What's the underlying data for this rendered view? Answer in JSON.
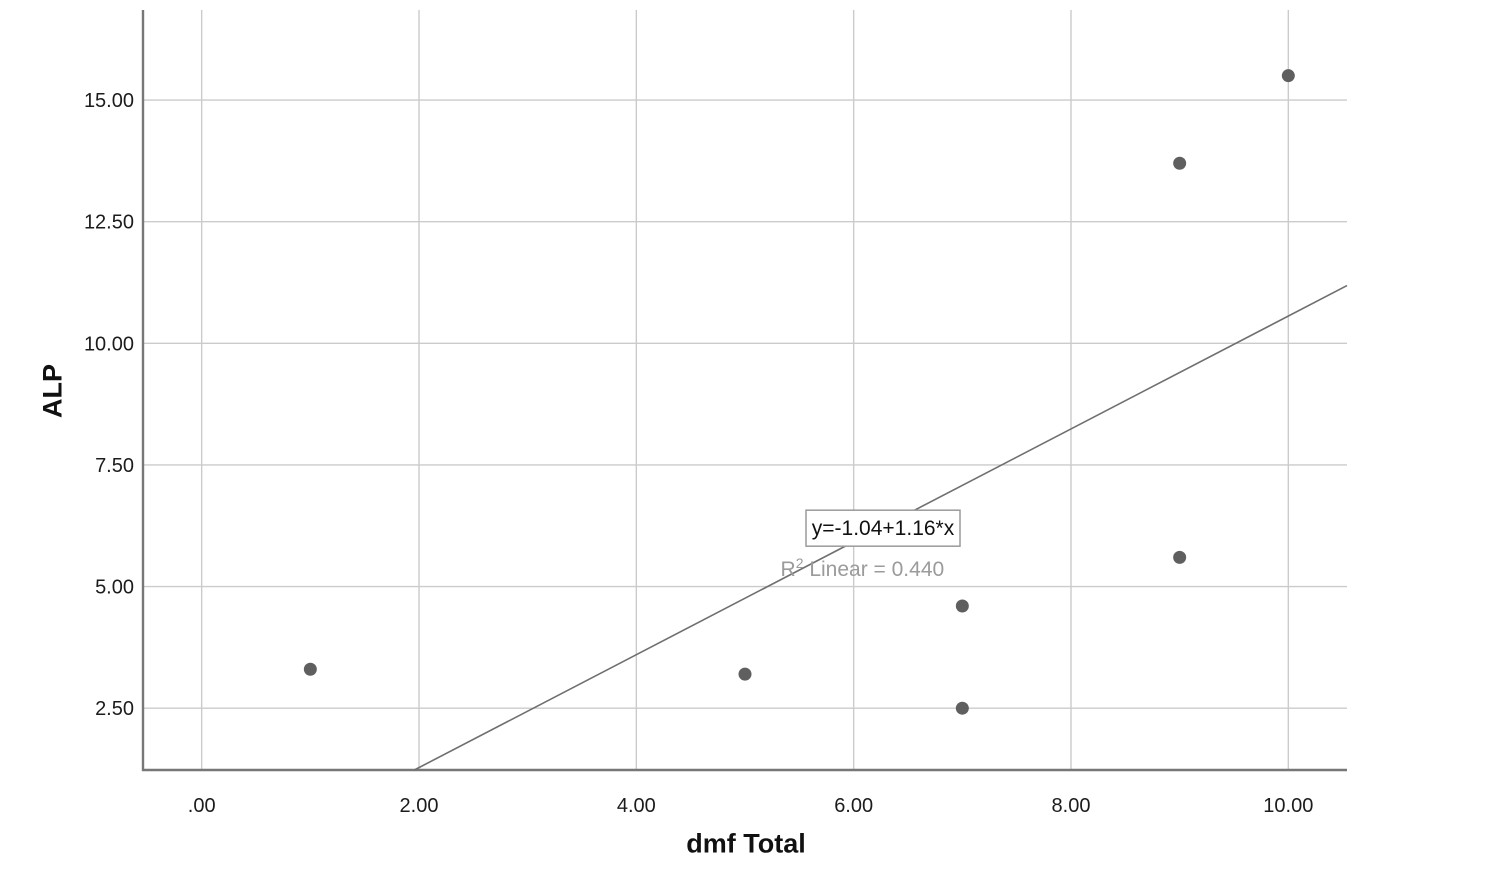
{
  "chart_data": {
    "type": "scatter",
    "title": "",
    "xlabel": "dmf Total",
    "ylabel": "ALP",
    "xlim": [
      -0.54,
      10.54
    ],
    "ylim": [
      1.23,
      16.85
    ],
    "grid": true,
    "x_ticks": [
      0,
      2,
      4,
      6,
      8,
      10
    ],
    "x_tick_labels": [
      ".00",
      "2.00",
      "4.00",
      "6.00",
      "8.00",
      "10.00"
    ],
    "y_ticks": [
      2.5,
      5,
      7.5,
      10,
      12.5,
      15
    ],
    "y_tick_labels": [
      "2.50",
      "5.00",
      "7.50",
      "10.00",
      "12.50",
      "15.00"
    ],
    "points": [
      {
        "x": 1.0,
        "y": 3.3
      },
      {
        "x": 5.0,
        "y": 3.2
      },
      {
        "x": 7.0,
        "y": 4.6
      },
      {
        "x": 7.0,
        "y": 2.5
      },
      {
        "x": 9.0,
        "y": 5.6
      },
      {
        "x": 9.0,
        "y": 13.7
      },
      {
        "x": 10.0,
        "y": 15.5
      }
    ],
    "regression": {
      "intercept": -1.04,
      "slope": 1.16,
      "equation_label": "y=-1.04+1.16*x",
      "r2": {
        "base": "R",
        "sup": "2",
        "rest": " Linear = 0.440"
      }
    },
    "annotations": {
      "equation": {
        "x": 6.27,
        "y": 6.2
      },
      "r_squared": {
        "x": 6.08,
        "y": 5.36
      }
    },
    "legend": null
  },
  "colors": {
    "background": "#ffffff",
    "grid": "#cbcbcb",
    "axis": "#777777",
    "point": "#5f5f5f",
    "fit_line": "#6f6f6f",
    "tick_text": "#1c1c1c",
    "equation_text": "#111111",
    "equation_box_border": "#9a9a9a",
    "equation_box_fill": "#ffffff",
    "r2_text": "#9b9b9b"
  }
}
